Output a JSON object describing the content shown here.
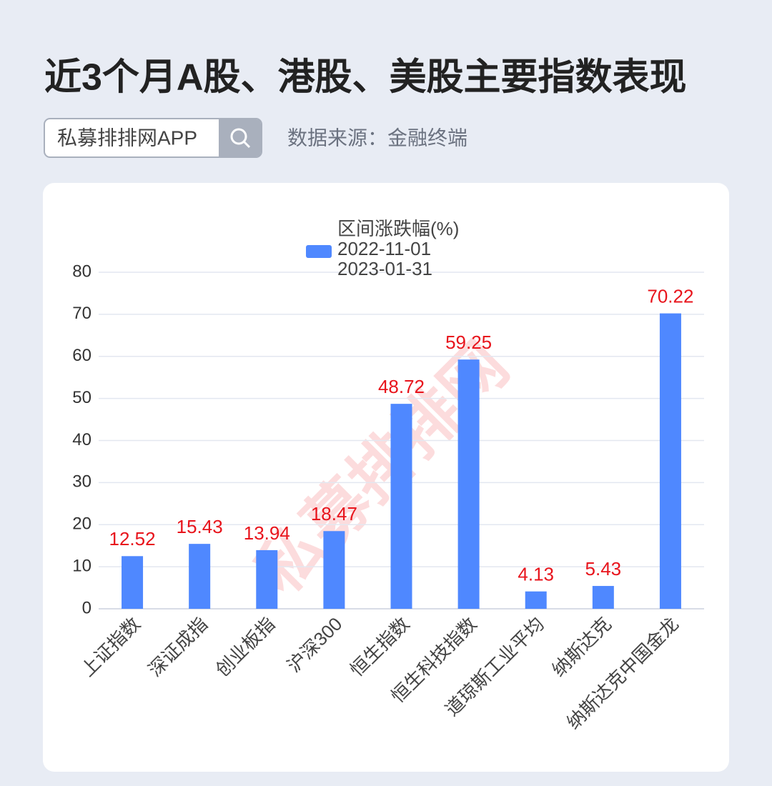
{
  "header": {
    "title": "近3个月A股、港股、美股主要指数表现",
    "search_text": "私募排排网APP",
    "source": "数据来源：金融终端"
  },
  "watermark": "私募排排网",
  "chart_data": {
    "type": "bar",
    "categories": [
      "上证指数",
      "深证成指",
      "创业板指",
      "沪深300",
      "恒生指数",
      "恒生科技指数",
      "道琼斯工业平均",
      "纳斯达克",
      "纳斯达克中国金龙"
    ],
    "series": [
      {
        "name": "区间涨跌幅(%)\n2022-11-01\n2023-01-31",
        "color": "#4f88ff",
        "values": [
          12.52,
          15.43,
          13.94,
          18.47,
          48.72,
          59.25,
          4.13,
          5.43,
          70.22
        ]
      }
    ],
    "value_label_color": "#e8141c",
    "ylim": [
      0,
      80
    ],
    "yticks": [
      0,
      10,
      20,
      30,
      40,
      50,
      60,
      70,
      80
    ],
    "grid": true
  }
}
